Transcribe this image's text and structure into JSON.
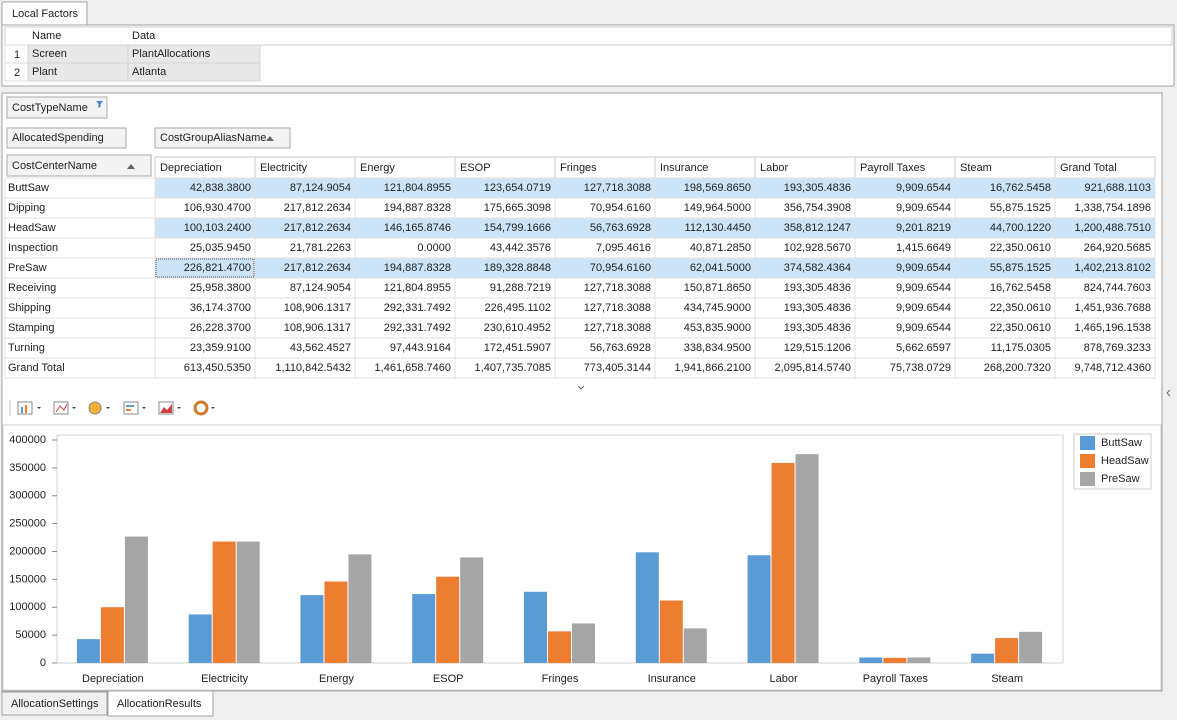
{
  "top_tab": "Local Factors",
  "local_factors": {
    "headers": [
      "Name",
      "Data"
    ],
    "rows": [
      {
        "number": "1",
        "cells": [
          "Screen",
          "PlantAllocations"
        ]
      },
      {
        "number": "2",
        "cells": [
          "Plant",
          "Atlanta"
        ]
      }
    ]
  },
  "pivot": {
    "filter_field": "CostTypeName",
    "data_field": "AllocatedSpending",
    "column_field": "CostGroupAliasName",
    "row_field": "CostCenterName",
    "columns": [
      "Depreciation",
      "Electricity",
      "Energy",
      "ESOP",
      "Fringes",
      "Insurance",
      "Labor",
      "Payroll Taxes",
      "Steam",
      "Grand Total"
    ],
    "rows": [
      {
        "name": "ButtSaw",
        "selected": true,
        "cells": [
          "42,838.3800",
          "87,124.9054",
          "121,804.8955",
          "123,654.0719",
          "127,718.3088",
          "198,569.8650",
          "193,305.4836",
          "9,909.6544",
          "16,762.5458",
          "921,688.1103"
        ]
      },
      {
        "name": "Dipping",
        "selected": false,
        "cells": [
          "106,930.4700",
          "217,812.2634",
          "194,887.8328",
          "175,665.3098",
          "70,954.6160",
          "149,964.5000",
          "356,754.3908",
          "9,909.6544",
          "55,875.1525",
          "1,338,754.1896"
        ]
      },
      {
        "name": "HeadSaw",
        "selected": true,
        "cells": [
          "100,103.2400",
          "217,812.2634",
          "146,165.8746",
          "154,799.1666",
          "56,763.6928",
          "112,130.4450",
          "358,812.1247",
          "9,201.8219",
          "44,700.1220",
          "1,200,488.7510"
        ]
      },
      {
        "name": "Inspection",
        "selected": false,
        "cells": [
          "25,035.9450",
          "21,781.2263",
          "0.0000",
          "43,442.3576",
          "7,095.4616",
          "40,871.2850",
          "102,928.5670",
          "1,415.6649",
          "22,350.0610",
          "264,920.5685"
        ]
      },
      {
        "name": "PreSaw",
        "selected": true,
        "cells": [
          "226,821.4700",
          "217,812.2634",
          "194,887.8328",
          "189,328.8848",
          "70,954.6160",
          "62,041.5000",
          "374,582.4364",
          "9,909.6544",
          "55,875.1525",
          "1,402,213.8102"
        ]
      },
      {
        "name": "Receiving",
        "selected": false,
        "cells": [
          "25,958.3800",
          "87,124.9054",
          "121,804.8955",
          "91,288.7219",
          "127,718.3088",
          "150,871.8650",
          "193,305.4836",
          "9,909.6544",
          "16,762.5458",
          "824,744.7603"
        ]
      },
      {
        "name": "Shipping",
        "selected": false,
        "cells": [
          "36,174.3700",
          "108,906.1317",
          "292,331.7492",
          "226,495.1102",
          "127,718.3088",
          "434,745.9000",
          "193,305.4836",
          "9,909.6544",
          "22,350.0610",
          "1,451,936.7688"
        ]
      },
      {
        "name": "Stamping",
        "selected": false,
        "cells": [
          "26,228.3700",
          "108,906.1317",
          "292,331.7492",
          "230,610.4952",
          "127,718.3088",
          "453,835.9000",
          "193,305.4836",
          "9,909.6544",
          "22,350.0610",
          "1,465,196.1538"
        ]
      },
      {
        "name": "Turning",
        "selected": false,
        "cells": [
          "23,359.9100",
          "43,562.4527",
          "97,443.9164",
          "172,451.5907",
          "56,763.6928",
          "338,834.9500",
          "129,515.1206",
          "5,662.6597",
          "11,175.0305",
          "878,769.3233"
        ]
      },
      {
        "name": "Grand Total",
        "selected": false,
        "cells": [
          "613,450.5350",
          "1,110,842.5432",
          "1,461,658.7460",
          "1,407,735.7085",
          "773,405.3144",
          "1,941,866.2100",
          "2,095,814.5740",
          "75,738.0729",
          "268,200.7320",
          "9,748,712.4360"
        ]
      }
    ]
  },
  "chart_data": {
    "type": "bar",
    "categories": [
      "Depreciation",
      "Electricity",
      "Energy",
      "ESOP",
      "Fringes",
      "Insurance",
      "Labor",
      "Payroll Taxes",
      "Steam"
    ],
    "series": [
      {
        "name": "ButtSaw",
        "color": "#5b9bd5",
        "values": [
          42838.38,
          87124.9054,
          121804.8955,
          123654.0719,
          127718.3088,
          198569.865,
          193305.4836,
          9909.6544,
          16762.5458
        ]
      },
      {
        "name": "HeadSaw",
        "color": "#ed7d31",
        "values": [
          100103.24,
          217812.2634,
          146165.8746,
          154799.1666,
          56763.6928,
          112130.445,
          358812.1247,
          9201.8219,
          44700.122
        ]
      },
      {
        "name": "PreSaw",
        "color": "#a5a5a5",
        "values": [
          226821.47,
          217812.2634,
          194887.8328,
          189328.8848,
          70954.616,
          62041.5,
          374582.4364,
          9909.6544,
          55875.1525
        ]
      }
    ],
    "ylim": [
      0,
      400000
    ],
    "yticks": [
      0,
      50000,
      100000,
      150000,
      200000,
      250000,
      300000,
      350000,
      400000
    ],
    "legend": "right"
  },
  "bottom_tabs": [
    "AllocationSettings",
    "AllocationResults"
  ]
}
